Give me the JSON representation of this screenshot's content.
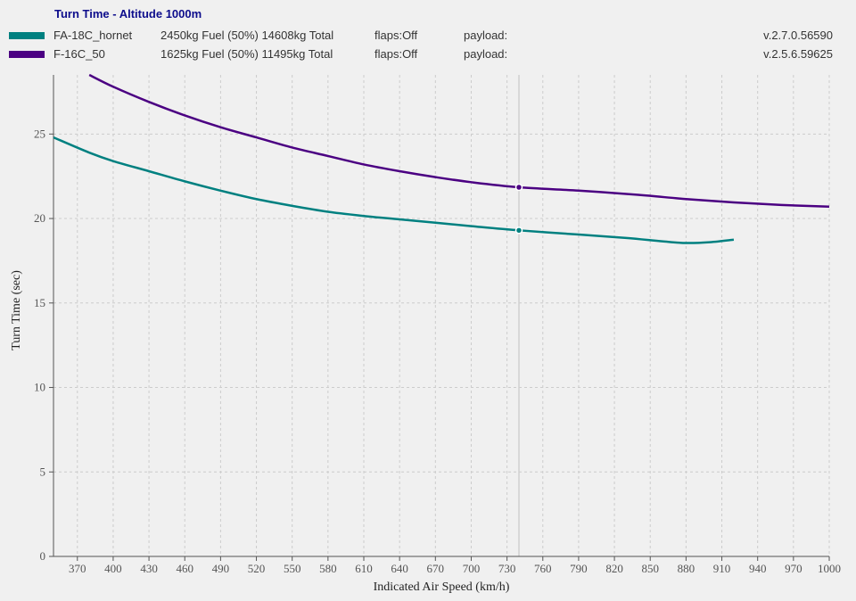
{
  "chart_data": {
    "type": "line",
    "title": "Turn Time - Altitude 1000m",
    "xlabel": "Indicated Air Speed (km/h)",
    "ylabel": "Turn Time (sec)",
    "xlim": [
      350,
      1000
    ],
    "ylim": [
      0,
      28.5
    ],
    "x_ticks": [
      370,
      400,
      430,
      460,
      490,
      520,
      550,
      580,
      610,
      640,
      670,
      700,
      730,
      760,
      790,
      820,
      850,
      880,
      910,
      940,
      970,
      1000
    ],
    "y_ticks": [
      0,
      5,
      10,
      15,
      20,
      25
    ],
    "grid": true,
    "cursor_x": 740,
    "series": [
      {
        "name": "FA-18C_hornet",
        "details": "2450kg Fuel (50%) 14608kg Total",
        "flaps": "flaps:Off",
        "payload": "payload:",
        "version": "v.2.7.0.56590",
        "color": "#008080",
        "x": [
          350,
          380,
          400,
          430,
          460,
          490,
          520,
          550,
          580,
          610,
          640,
          670,
          700,
          740,
          790,
          830,
          860,
          880,
          900,
          920
        ],
        "y": [
          24.8,
          23.9,
          23.4,
          22.8,
          22.2,
          21.65,
          21.15,
          20.75,
          20.4,
          20.15,
          19.95,
          19.75,
          19.55,
          19.3,
          19.05,
          18.85,
          18.65,
          18.55,
          18.6,
          18.75
        ]
      },
      {
        "name": "F-16C_50",
        "details": "1625kg Fuel (50%) 11495kg Total",
        "flaps": "flaps:Off",
        "payload": "payload:",
        "version": "v.2.5.6.59625",
        "color": "#4b0082",
        "x": [
          380,
          400,
          430,
          460,
          490,
          520,
          550,
          580,
          610,
          640,
          670,
          700,
          740,
          790,
          840,
          880,
          920,
          960,
          1000
        ],
        "y": [
          28.5,
          27.8,
          26.9,
          26.1,
          25.4,
          24.8,
          24.2,
          23.7,
          23.2,
          22.8,
          22.45,
          22.15,
          21.85,
          21.65,
          21.4,
          21.15,
          20.95,
          20.8,
          20.7
        ]
      }
    ]
  }
}
